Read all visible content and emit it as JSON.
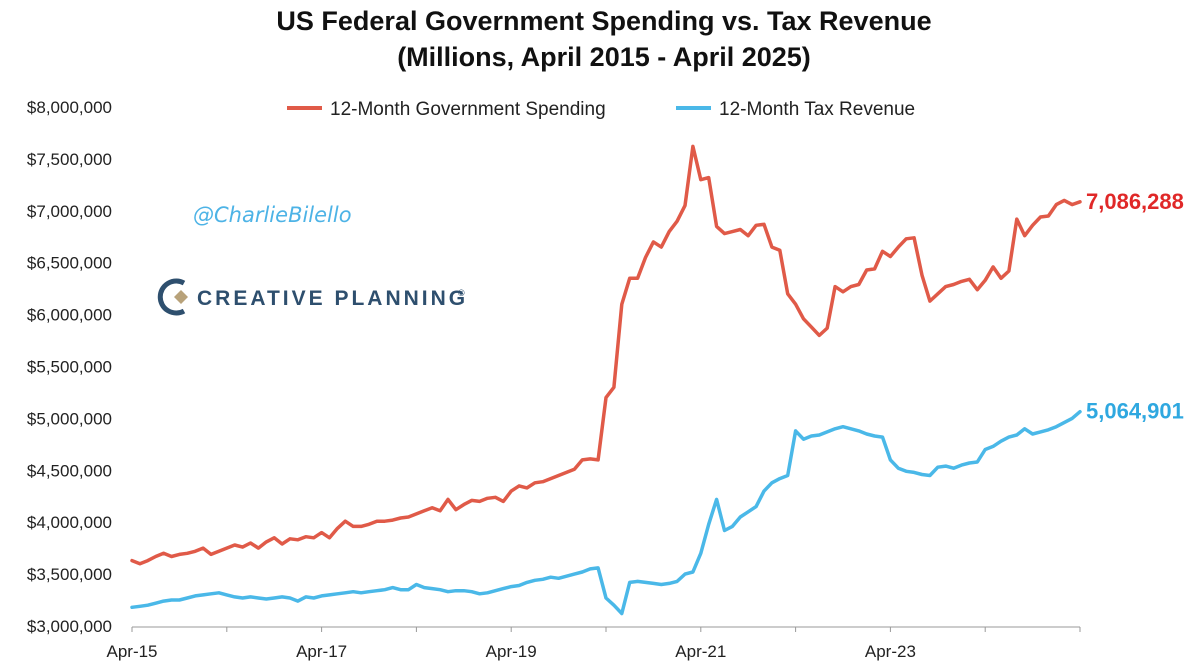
{
  "chart_data": {
    "type": "line",
    "title": "US Federal Government Spending vs. Tax Revenue",
    "subtitle": "(Millions, April 2015 - April 2025)",
    "xlabel": "",
    "ylabel": "",
    "ylim": [
      3000000,
      8000000
    ],
    "yticks": [
      3000000,
      3500000,
      4000000,
      4500000,
      5000000,
      5500000,
      6000000,
      6500000,
      7000000,
      7500000,
      8000000
    ],
    "ytick_labels": [
      "$3,000,000",
      "$3,500,000",
      "$4,000,000",
      "$4,500,000",
      "$5,000,000",
      "$5,500,000",
      "$6,000,000",
      "$6,500,000",
      "$7,000,000",
      "$7,500,000",
      "$8,000,000"
    ],
    "xlim_months": [
      0,
      120
    ],
    "xticks_months": [
      0,
      24,
      48,
      72,
      96
    ],
    "xtick_labels": [
      "Apr-15",
      "Apr-17",
      "Apr-19",
      "Apr-21",
      "Apr-23"
    ],
    "grid": false,
    "legend_position": "top-center",
    "series": [
      {
        "name": "12-Month Government Spending",
        "color": "#e05a48",
        "end_label": "7,086,288",
        "values": [
          3630000,
          3600000,
          3630000,
          3670000,
          3700000,
          3670000,
          3690000,
          3700000,
          3720000,
          3750000,
          3690000,
          3720000,
          3750000,
          3780000,
          3760000,
          3800000,
          3750000,
          3810000,
          3850000,
          3790000,
          3840000,
          3830000,
          3860000,
          3850000,
          3900000,
          3850000,
          3940000,
          4010000,
          3960000,
          3960000,
          3980000,
          4010000,
          4010000,
          4020000,
          4040000,
          4050000,
          4080000,
          4110000,
          4140000,
          4110000,
          4220000,
          4120000,
          4170000,
          4210000,
          4200000,
          4230000,
          4240000,
          4200000,
          4300000,
          4350000,
          4330000,
          4380000,
          4390000,
          4420000,
          4450000,
          4480000,
          4510000,
          4600000,
          4610000,
          4600000,
          5200000,
          5300000,
          6100000,
          6350000,
          6350000,
          6550000,
          6700000,
          6650000,
          6800000,
          6900000,
          7050000,
          7620000,
          7300000,
          7320000,
          6850000,
          6780000,
          6800000,
          6820000,
          6760000,
          6860000,
          6870000,
          6650000,
          6620000,
          6200000,
          6100000,
          5960000,
          5880000,
          5800000,
          5870000,
          6270000,
          6220000,
          6270000,
          6290000,
          6430000,
          6440000,
          6610000,
          6560000,
          6650000,
          6730000,
          6740000,
          6380000,
          6130000,
          6200000,
          6270000,
          6290000,
          6320000,
          6340000,
          6240000,
          6330000,
          6460000,
          6350000,
          6420000,
          6920000,
          6760000,
          6860000,
          6940000,
          6950000,
          7060000,
          7100000,
          7060000,
          7086288
        ]
      },
      {
        "name": "12-Month Tax Revenue",
        "color": "#4ab8e8",
        "end_label": "5,064,901",
        "values": [
          3180000,
          3190000,
          3200000,
          3220000,
          3240000,
          3250000,
          3250000,
          3270000,
          3290000,
          3300000,
          3310000,
          3320000,
          3300000,
          3280000,
          3270000,
          3280000,
          3270000,
          3260000,
          3270000,
          3280000,
          3270000,
          3240000,
          3280000,
          3270000,
          3290000,
          3300000,
          3310000,
          3320000,
          3330000,
          3320000,
          3330000,
          3340000,
          3350000,
          3370000,
          3350000,
          3350000,
          3400000,
          3370000,
          3360000,
          3350000,
          3330000,
          3340000,
          3340000,
          3330000,
          3310000,
          3320000,
          3340000,
          3360000,
          3380000,
          3390000,
          3420000,
          3440000,
          3450000,
          3470000,
          3460000,
          3480000,
          3500000,
          3520000,
          3550000,
          3560000,
          3270000,
          3200000,
          3120000,
          3420000,
          3430000,
          3420000,
          3410000,
          3400000,
          3410000,
          3430000,
          3500000,
          3520000,
          3700000,
          3980000,
          4220000,
          3920000,
          3960000,
          4050000,
          4100000,
          4150000,
          4300000,
          4380000,
          4420000,
          4450000,
          4880000,
          4800000,
          4830000,
          4840000,
          4870000,
          4900000,
          4920000,
          4900000,
          4880000,
          4850000,
          4830000,
          4820000,
          4600000,
          4520000,
          4490000,
          4480000,
          4460000,
          4450000,
          4530000,
          4540000,
          4520000,
          4550000,
          4570000,
          4580000,
          4700000,
          4730000,
          4780000,
          4820000,
          4840000,
          4900000,
          4850000,
          4870000,
          4890000,
          4920000,
          4960000,
          5000000,
          5064901
        ]
      }
    ]
  },
  "watermark": "@CharlieBilello",
  "brand": {
    "name": "CREATIVE PLANNING",
    "mark": "®"
  },
  "colors": {
    "spending": "#e05a48",
    "revenue": "#4ab8e8",
    "end_label_spending": "#e02828",
    "end_label_revenue": "#2fa8e0",
    "brand_dark": "#2e4f6e",
    "brand_gold": "#b8a27a"
  }
}
